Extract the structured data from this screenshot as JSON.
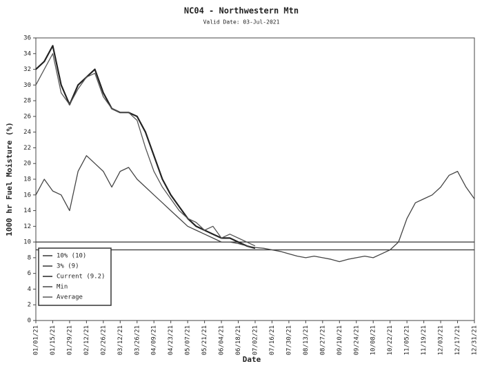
{
  "chart_data": {
    "type": "line",
    "title": "NC04 - Northwestern Mtn",
    "subtitle": "Valid Date: 03-Jul-2021",
    "xlabel": "Date",
    "ylabel": "1000 hr Fuel Moisture (%)",
    "x": [
      "01/01/21",
      "01/08/21",
      "01/15/21",
      "01/22/21",
      "01/29/21",
      "02/05/21",
      "02/12/21",
      "02/19/21",
      "02/26/21",
      "03/05/21",
      "03/12/21",
      "03/19/21",
      "03/26/21",
      "04/02/21",
      "04/09/21",
      "04/16/21",
      "04/23/21",
      "04/30/21",
      "05/07/21",
      "05/14/21",
      "05/21/21",
      "05/28/21",
      "06/04/21",
      "06/11/21",
      "06/18/21",
      "06/25/21",
      "07/02/21",
      "07/09/21",
      "07/16/21",
      "07/23/21",
      "07/30/21",
      "08/06/21",
      "08/13/21",
      "08/20/21",
      "08/27/21",
      "09/03/21",
      "09/10/21",
      "09/17/21",
      "09/24/21",
      "10/01/21",
      "10/08/21",
      "10/15/21",
      "10/22/21",
      "10/29/21",
      "11/05/21",
      "11/12/21",
      "11/19/21",
      "11/26/21",
      "12/03/21",
      "12/10/21",
      "12/17/21",
      "12/24/21",
      "12/31/21"
    ],
    "xlim": [
      "01/01/21",
      "12/31/21"
    ],
    "xticks": [
      "01/01/21",
      "01/15/21",
      "01/29/21",
      "02/12/21",
      "02/26/21",
      "03/12/21",
      "03/26/21",
      "04/09/21",
      "04/23/21",
      "05/07/21",
      "05/21/21",
      "06/04/21",
      "06/18/21",
      "07/02/21",
      "07/16/21",
      "07/30/21",
      "08/13/21",
      "08/27/21",
      "09/10/21",
      "09/24/21",
      "10/08/21",
      "10/22/21",
      "11/05/21",
      "11/19/21",
      "12/03/21",
      "12/17/21",
      "12/31/21"
    ],
    "ylim": [
      0,
      36
    ],
    "yticks": [
      0,
      2,
      4,
      6,
      8,
      10,
      12,
      14,
      16,
      18,
      20,
      22,
      24,
      26,
      28,
      30,
      32,
      34,
      36
    ],
    "reference_lines": [
      {
        "name": "10% (10)",
        "value": 10,
        "color": "#333333"
      },
      {
        "name": "3% (9)",
        "value": 9,
        "color": "#333333"
      }
    ],
    "series": [
      {
        "name": "Current (9.2)",
        "color": "#222222",
        "width": 2.2,
        "values": [
          32,
          33,
          35,
          30,
          27.5,
          30,
          31,
          32,
          29,
          27,
          26.5,
          26.5,
          26,
          24,
          21,
          18,
          16,
          14.5,
          13,
          12,
          11.5,
          11,
          10.5,
          10.5,
          10,
          9.5,
          9.2,
          null,
          null,
          null,
          null,
          null,
          null,
          null,
          null,
          null,
          null,
          null,
          null,
          null,
          null,
          null,
          null,
          null,
          null,
          null,
          null,
          null,
          null,
          null,
          null,
          null,
          null
        ]
      },
      {
        "name": "Min",
        "color": "#444444",
        "width": 1.3,
        "values": [
          16,
          18,
          16.5,
          16,
          14,
          19,
          21,
          20,
          19,
          17,
          19,
          19.5,
          18,
          17,
          16,
          15,
          14,
          13,
          12,
          11.5,
          11,
          10.5,
          10,
          10,
          9.8,
          9.5,
          9.3,
          9.2,
          9,
          8.8,
          8.5,
          8.2,
          8,
          8.2,
          8,
          7.8,
          7.5,
          7.8,
          8,
          8.2,
          8,
          8.5,
          9,
          10,
          13,
          15,
          15.5,
          16,
          17,
          18.5,
          19,
          17,
          15.5
        ]
      },
      {
        "name": "Average",
        "color": "#555555",
        "width": 1.3,
        "values": [
          30,
          32,
          34,
          29,
          27.5,
          29.5,
          31,
          31.5,
          28.5,
          27,
          26.5,
          26.5,
          25.5,
          22,
          19,
          17,
          15.5,
          14,
          13,
          12.5,
          11.5,
          12,
          10.5,
          11,
          10.5,
          10,
          9.5,
          null,
          null,
          null,
          null,
          null,
          null,
          null,
          null,
          null,
          null,
          null,
          null,
          null,
          null,
          null,
          null,
          null,
          null,
          null,
          null,
          null,
          null,
          null,
          null,
          null,
          null
        ]
      }
    ],
    "legend": "lower left"
  }
}
